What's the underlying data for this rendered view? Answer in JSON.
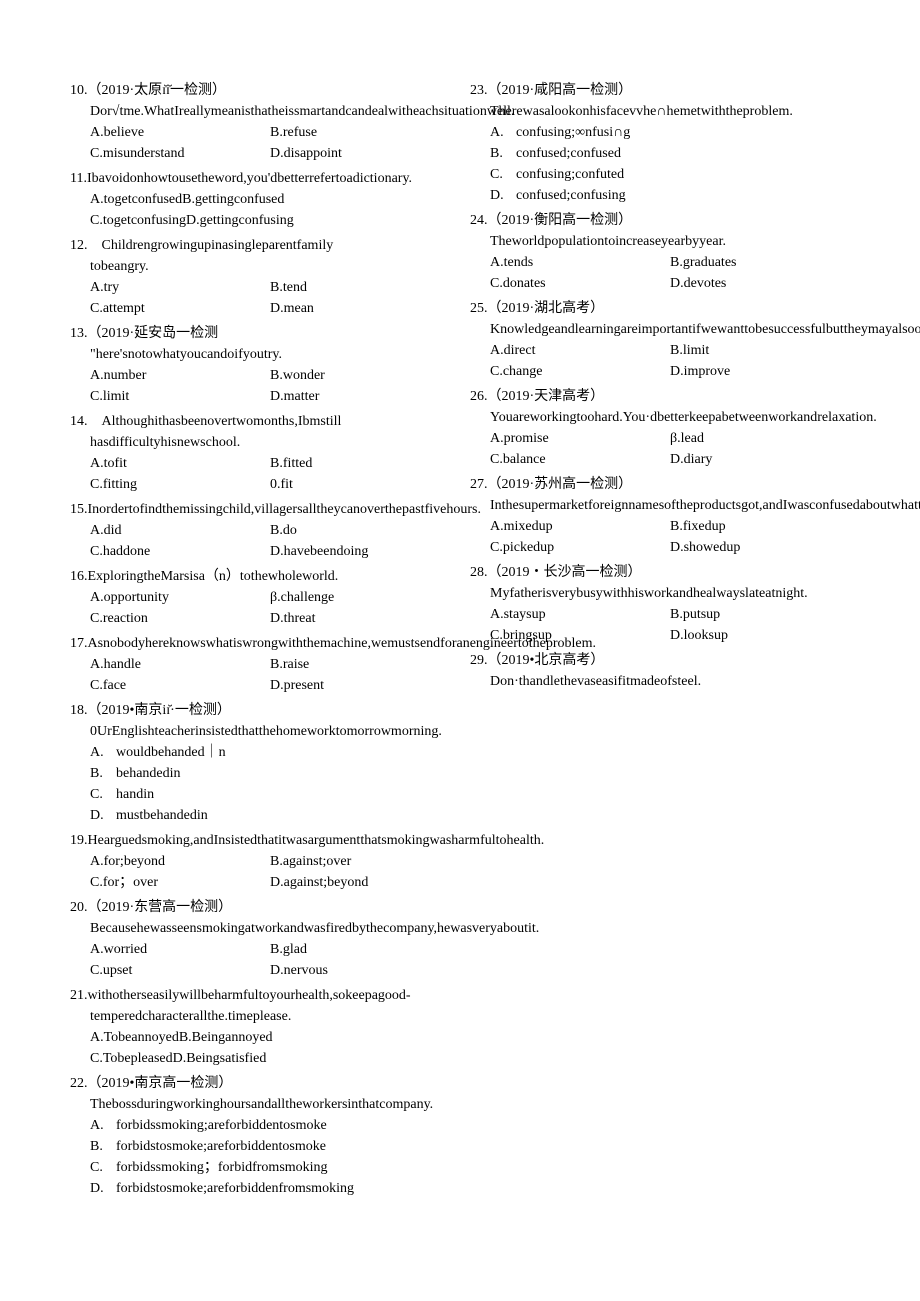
{
  "questions": [
    {
      "num": "10.",
      "head": "（2019·太原ɪ̆ɪ̆一检测）",
      "body": "Dor√tme.WhatIreallymeanisthatheissmartandcandealwitheachsituationwell.",
      "opts2": [
        [
          "A.believe",
          "B.refuse"
        ],
        [
          "C.misunderstand",
          "D.disappoint"
        ]
      ]
    },
    {
      "num": "11.",
      "body": "Ibavoidonhowtousetheword,you'dbetterrefertoadictionary.",
      "optsFull": [
        "A.togetconfusedB.gettingconfused",
        "C.togetconfusingD.gettingconfusing"
      ]
    },
    {
      "num": "12.",
      "bodyLines": [
        "Childrengrowingupinasingleparentfamily",
        "tobeangry."
      ],
      "opts2": [
        [
          "A.try",
          "B.tend"
        ],
        [
          "C.attempt",
          "D.mean"
        ]
      ]
    },
    {
      "num": "13.",
      "head": "（2019·延安岛一检测",
      "body": "\"here'snotowhatyoucandoifyoutry.",
      "opts2": [
        [
          "A.number",
          "B.wonder"
        ],
        [
          "C.limit",
          "D.matter"
        ]
      ]
    },
    {
      "num": "14.",
      "bodyLines": [
        "Althoughithasbeenovertwomonths,Ibmstill",
        "hasdifficultyhisnewschool."
      ],
      "opts2": [
        [
          "A.tofit",
          "B.fitted"
        ],
        [
          "C.fitting",
          "0.fit"
        ]
      ]
    },
    {
      "num": "15.",
      "body": "Inordertofindthemissingchild,villagersalltheycanoverthepastfivehours.",
      "opts2": [
        [
          "A.did",
          "B.do"
        ],
        [
          "C.haddone",
          "D.havebeendoing"
        ]
      ]
    },
    {
      "num": "16.",
      "body": "ExploringtheMarsisa（n）tothewholeworld.",
      "opts2": [
        [
          "A.opportunity",
          "β.challenge"
        ],
        [
          "C.reaction",
          "D.threat"
        ]
      ]
    },
    {
      "num": "17.",
      "body": "Asnobodyhereknowswhatiswrongwiththemachine,wemustsendforanengineertotheproblem.",
      "opts2": [
        [
          "A.handle",
          "B.raise"
        ],
        [
          "C.face",
          "D.present"
        ]
      ]
    },
    {
      "num": "18.",
      "head": "（2019•南京iɪ̆·一检测）",
      "body": "0UrEnglishteacherinsistedthatthehomeworktomorrowmorning.",
      "optsLetter": [
        [
          "A.",
          "wouldbehanded｜n"
        ],
        [
          "B.",
          "behandedin"
        ],
        [
          "C.",
          "handin"
        ],
        [
          "D.",
          "mustbehandedin"
        ]
      ]
    },
    {
      "num": "19.",
      "body": "Hearguedsmoking,andInsistedthatitwasargumentthatsmokingwasharmfultohealth.",
      "opts2": [
        [
          "A.for;beyond",
          "B.against;over"
        ],
        [
          "C.for；over",
          "D.against;beyond"
        ]
      ]
    },
    {
      "num": "20.",
      "head": "（2019·东营高一检测）",
      "body": "Becausehewasseensmokingatworkandwasfiredbythecompany,hewasveryaboutit.",
      "opts2": [
        [
          "A.worried",
          "B.glad"
        ],
        [
          "C.upset",
          "D.nervous"
        ]
      ]
    },
    {
      "num": "21.",
      "body": "withotherseasilywillbeharmfultoyourhealth,sokeepagood-temperedcharacterallthe.timeplease.",
      "optsFull": [
        "A.TobeannoyedB.Beingannoyed",
        "C.TobepleasedD.Beingsatisfied"
      ]
    },
    {
      "num": "22.",
      "head": "（2019•南京高一检测）",
      "body": "Thebossduringworkinghoursandalltheworkersinthatcompany.",
      "optsLetter": [
        [
          "A.",
          "forbidssmoking;areforbiddentosmoke"
        ],
        [
          "B.",
          "forbidstosmoke;areforbiddentosmoke"
        ],
        [
          "C.",
          "forbidssmoking；forbidfromsmoking"
        ],
        [
          "D.",
          "forbidstosmoke;areforbiddenfromsmoking"
        ]
      ]
    },
    {
      "num": "23.",
      "head": "（2019·咸阳高一检测）",
      "body": "Therewasalookonhisfacevvhe∩hemetwiththeproblem.",
      "optsLetter": [
        [
          "A.",
          "confusing;∞nfusi∩g"
        ],
        [
          "B.",
          "confused;confused"
        ],
        [
          "C.",
          "confusing;confuted"
        ],
        [
          "D.",
          "confused;confusing"
        ]
      ]
    },
    {
      "num": "24.",
      "head": "（2019·衡阳高一检测）",
      "body": "Theworldpopulationtoincreaseyearbyyear.",
      "opts2": [
        [
          "A.tends",
          "B.graduates"
        ],
        [
          "C.donates",
          "D.devotes"
        ]
      ]
    },
    {
      "num": "25.",
      "head": "（2019·湖北高考）",
      "body": "Knowledgeandlearningareimportantifwewanttobesuccessfulbuttheymayalsoourthinking.",
      "opts2": [
        [
          "A.direct",
          "B.limit"
        ],
        [
          "C.change",
          "D.improve"
        ]
      ]
    },
    {
      "num": "26.",
      "head": "（2019·天津高考）",
      "body": "Youareworkingtoohard.You·dbetterkeepabetweenworkandrelaxation.",
      "opts2": [
        [
          "A.promise",
          "β.lead"
        ],
        [
          "C.balance",
          "D.diary"
        ]
      ]
    },
    {
      "num": "27.",
      "head": "（2019·苏州高一检测）",
      "body": "Inthesupermarketforeignnamesoftheproductsgot,andIwasconfusedaboutwhattobuy.",
      "opts2": [
        [
          "A.mixedup",
          "B.fixedup"
        ],
        [
          "C.pickedup",
          "D.showedup"
        ]
      ]
    },
    {
      "num": "28.",
      "head": "（2019・长沙高一检测）",
      "body": "Myfatherisverybusywithhisworkandhealwayslateatnight.",
      "opts2": [
        [
          "A.staysup",
          "B.putsup"
        ],
        [
          "C.bringsup",
          "D.looksup"
        ]
      ]
    },
    {
      "num": "29.",
      "head": "（2019•北京高考）",
      "body": "Don·thandlethevaseasifitmadeofsteel."
    }
  ]
}
